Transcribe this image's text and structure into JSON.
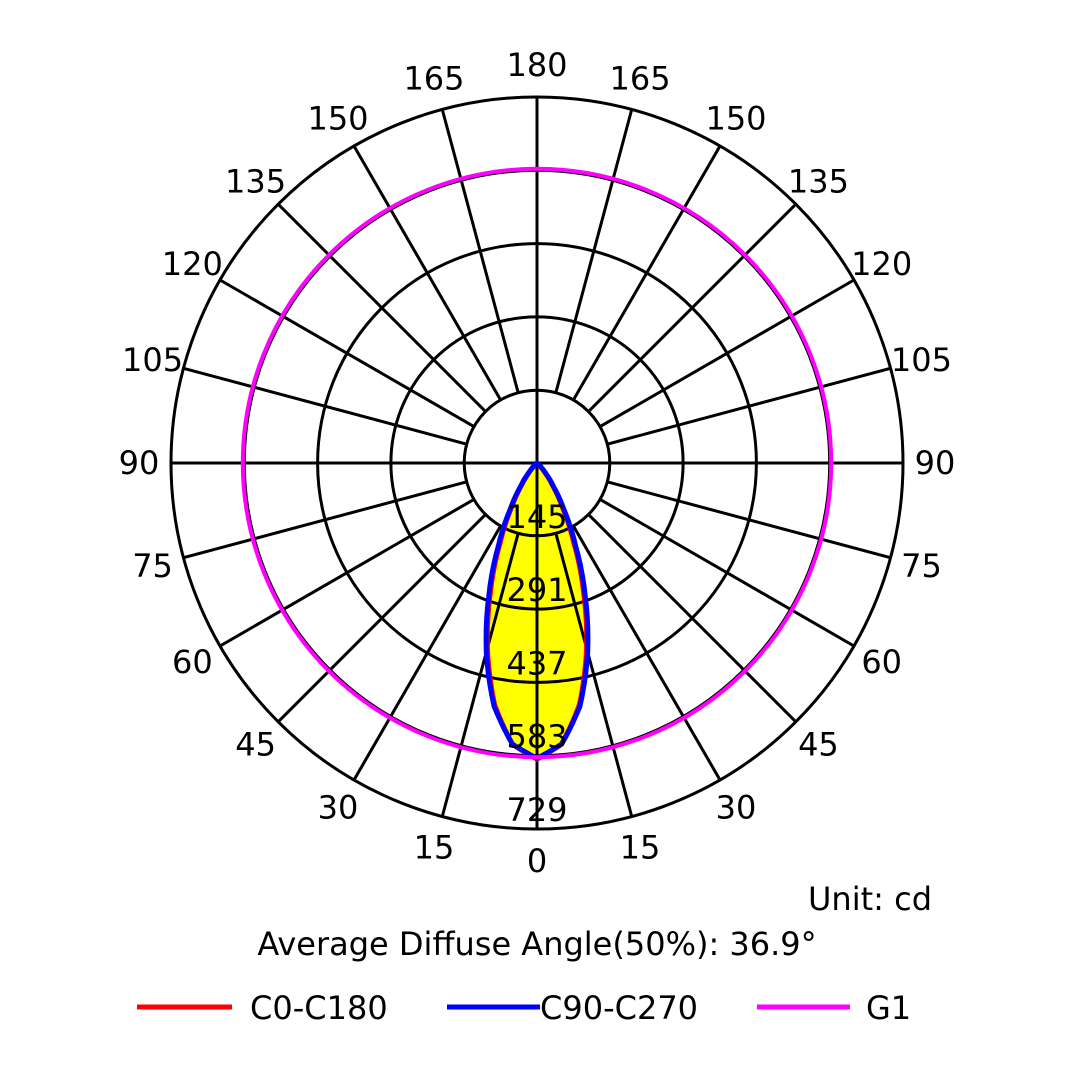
{
  "chart_data": {
    "type": "polar",
    "title": "",
    "unit_label": "Unit: cd",
    "diffuse_angle_label": "Average Diffuse Angle(50%): 36.9°",
    "radial_max": 729,
    "radial_ticks": [
      145,
      291,
      437,
      583,
      729
    ],
    "angle_ticks_left": [
      0,
      15,
      30,
      45,
      60,
      75,
      90,
      105,
      120,
      135,
      150,
      165,
      180
    ],
    "angle_ticks_right": [
      15,
      30,
      45,
      60,
      75,
      90,
      105,
      120,
      135,
      150,
      165
    ],
    "angles_deg": [
      0,
      5,
      10,
      15,
      20,
      25,
      30,
      35,
      40,
      45,
      50,
      55,
      60,
      90,
      180
    ],
    "series": [
      {
        "name": "C0-C180",
        "color": "#ff0000",
        "values": [
          590,
          562,
          488,
          382,
          270,
          172,
          100,
          52,
          24,
          9,
          3,
          1,
          0,
          0,
          0
        ]
      },
      {
        "name": "C90-C270",
        "color": "#0000ff",
        "values": [
          588,
          562,
          492,
          390,
          280,
          182,
          108,
          58,
          28,
          11,
          4,
          1,
          0,
          0,
          0
        ]
      },
      {
        "name": "G1",
        "color": "#ff00ff",
        "constant": 586
      }
    ],
    "fill_color": "#ffff00",
    "legend_position": "bottom"
  }
}
